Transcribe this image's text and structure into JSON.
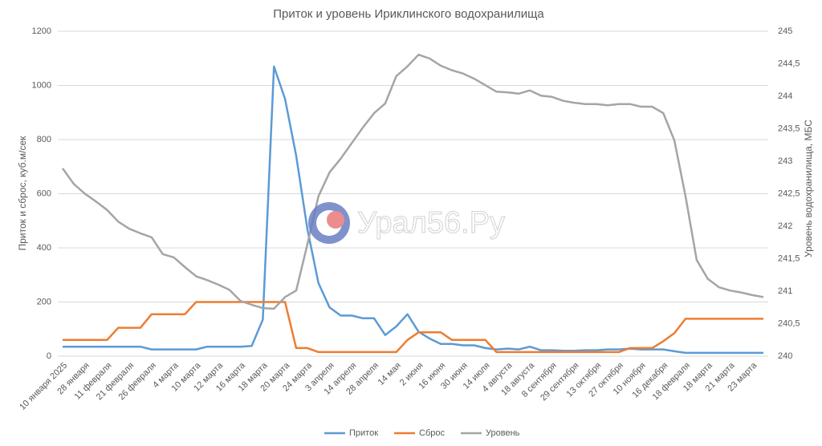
{
  "chart_data": {
    "type": "line",
    "title": "Приток и уровень Ириклинского водохранилища",
    "y_label": "Приток и сброс, куб.м/сек",
    "y2_label": "Уровень водохранилища, МБС",
    "watermark": "Урал56.Ру",
    "categories": [
      "10 января 2025",
      null,
      "28 января",
      null,
      "11 февраля",
      null,
      "21 февраля",
      null,
      "26 февраля",
      null,
      "4 марта",
      null,
      "10 марта",
      null,
      "12 марта",
      null,
      "16 марта",
      null,
      "18 марта",
      null,
      "20 марта",
      null,
      "24 марта",
      null,
      "3 апреля",
      null,
      "14 апреля",
      null,
      "28 апреля",
      null,
      "14 мая",
      null,
      "2 июня",
      null,
      "16 июня",
      null,
      "30 июня",
      null,
      "14 июля",
      null,
      "4 августа",
      null,
      "18 августа",
      null,
      "8 сентября",
      null,
      "29 сентября",
      null,
      "13 октября",
      null,
      "27 октября",
      null,
      "10 ноября",
      null,
      "16 декабря",
      null,
      "18 февраля",
      null,
      "18 марта",
      null,
      "21 марта",
      null,
      "23 марта",
      null
    ],
    "ylim": [
      0,
      1200
    ],
    "yticks": [
      0,
      200,
      400,
      600,
      800,
      1000,
      1200
    ],
    "y2lim": [
      240,
      245
    ],
    "y2ticks": [
      240,
      {
        "value": 240.5,
        "label": "240,5"
      },
      241,
      {
        "value": 241.5,
        "label": "241,5"
      },
      242,
      {
        "value": 242.5,
        "label": "242,5"
      },
      243,
      {
        "value": 243.5,
        "label": "243,5"
      },
      244,
      {
        "value": 244.5,
        "label": "244,5"
      },
      245
    ],
    "grid": true,
    "legend": "bottom",
    "series": [
      {
        "name": "Приток",
        "color": "#5b9bd5",
        "values": [
          35,
          35,
          35,
          35,
          35,
          35,
          35,
          35,
          25,
          25,
          25,
          25,
          25,
          35,
          35,
          35,
          35,
          38,
          135,
          1070,
          950,
          740,
          470,
          270,
          180,
          150,
          150,
          140,
          140,
          78,
          110,
          155,
          90,
          65,
          45,
          45,
          40,
          40,
          30,
          25,
          28,
          25,
          35,
          22,
          22,
          20,
          20,
          22,
          22,
          25,
          25,
          28,
          25,
          25,
          25,
          18,
          12,
          12,
          12,
          12,
          12,
          12,
          12,
          12
        ]
      },
      {
        "name": "Сброс",
        "color": "#ed7d31",
        "values": [
          60,
          60,
          60,
          60,
          60,
          105,
          105,
          105,
          155,
          155,
          155,
          155,
          200,
          200,
          200,
          200,
          200,
          200,
          200,
          200,
          200,
          30,
          30,
          15,
          15,
          15,
          15,
          15,
          15,
          15,
          15,
          60,
          88,
          88,
          88,
          60,
          60,
          60,
          60,
          15,
          15,
          15,
          15,
          15,
          15,
          15,
          15,
          15,
          15,
          15,
          15,
          30,
          30,
          30,
          55,
          85,
          138,
          138,
          138,
          138,
          138,
          138,
          138,
          138
        ]
      },
      {
        "name": "Уровень",
        "color": "#a5a5a5",
        "axis": "y2",
        "values": [
          242.89,
          242.65,
          242.5,
          242.38,
          242.25,
          242.07,
          241.96,
          241.89,
          241.83,
          241.57,
          241.52,
          241.37,
          241.23,
          241.17,
          241.1,
          241.02,
          240.85,
          240.79,
          240.74,
          240.73,
          240.91,
          241.01,
          241.72,
          242.46,
          242.83,
          243.04,
          243.28,
          243.52,
          243.74,
          243.89,
          244.31,
          244.46,
          244.64,
          244.58,
          244.47,
          244.4,
          244.35,
          244.27,
          244.17,
          244.07,
          244.06,
          244.04,
          244.09,
          244.01,
          243.99,
          243.93,
          243.9,
          243.88,
          243.88,
          243.86,
          243.88,
          243.88,
          243.84,
          243.84,
          243.74,
          243.32,
          242.46,
          241.48,
          241.19,
          241.06,
          241.01,
          240.98,
          240.94,
          240.91
        ]
      }
    ]
  }
}
